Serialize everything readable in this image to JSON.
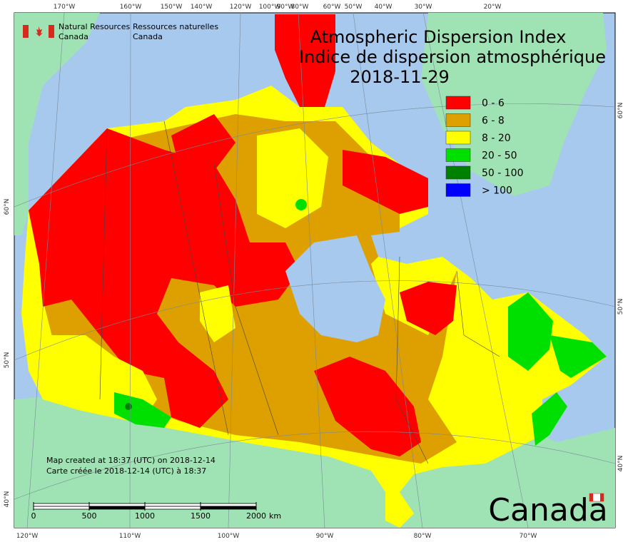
{
  "logo": {
    "en": [
      "Natural Resources",
      "Canada"
    ],
    "fr": [
      "Ressources naturelles",
      "Canada"
    ]
  },
  "title": {
    "en": "Atmospheric Dispersion Index",
    "fr": "Indice de dispersion atmosphérique",
    "date": "2018-11-29"
  },
  "legend": [
    {
      "label": "0 - 6",
      "color": "#ff0000"
    },
    {
      "label": "6 - 8",
      "color": "#dda000"
    },
    {
      "label": "8 - 20",
      "color": "#ffff00"
    },
    {
      "label": "20 - 50",
      "color": "#00e000"
    },
    {
      "label": "50 - 100",
      "color": "#008000"
    },
    {
      "label": "> 100",
      "color": "#0000ff"
    }
  ],
  "graticule": {
    "top": [
      "170°W",
      "160°W",
      "150°W",
      "140°W",
      "120°W",
      "100°W",
      "90°W",
      "80°W",
      "60°W",
      "50°W",
      "40°W",
      "30°W",
      "20°W"
    ],
    "bottom": [
      "120°W",
      "110°W",
      "100°W",
      "90°W",
      "80°W",
      "70°W"
    ],
    "left": [
      "60°N",
      "50°N",
      "40°N"
    ],
    "right": [
      "60°N",
      "50°N",
      "40°N"
    ]
  },
  "notes": [
    "Map created at 18:37 (UTC) on 2018-12-14",
    "Carte créée le 2018-12-14 (UTC) à 18:37"
  ],
  "scale_bar": {
    "ticks": [
      0,
      500,
      1000,
      1500,
      2000
    ],
    "unit": "km"
  },
  "wordmark": "Canada"
}
